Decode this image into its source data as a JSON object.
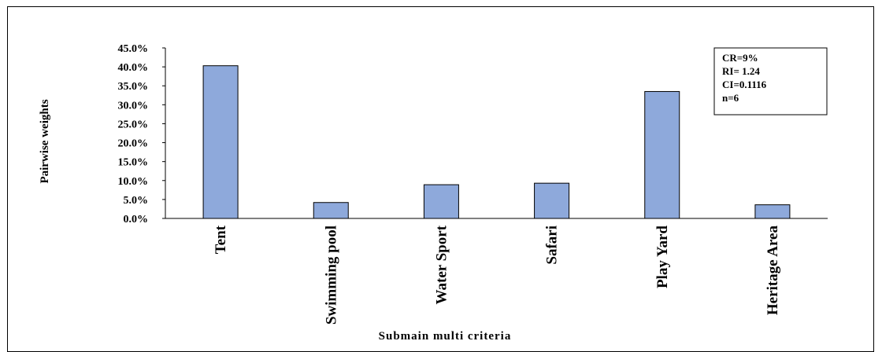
{
  "chart_data": {
    "type": "bar",
    "title": "",
    "xlabel": "Submain multi criteria",
    "ylabel": "Pairwise weights",
    "categories": [
      "Tent",
      "Swimming pool",
      "Water Sport",
      "Safari",
      "Play Yard",
      "Heritage Area"
    ],
    "values": [
      40.3,
      4.2,
      8.9,
      9.3,
      33.5,
      3.6
    ],
    "ylim": [
      0,
      45
    ],
    "yticks": [
      "0.0%",
      "5.0%",
      "10.0%",
      "15.0%",
      "20.0%",
      "25.0%",
      "30.0%",
      "35.0%",
      "40.0%",
      "45.0%"
    ],
    "grid": false,
    "legend": "none",
    "bar_color": "#8EA9DB",
    "annotation_lines": [
      "CR=9%",
      "RI= 1.24",
      "CI=0.1116",
      "n=6"
    ]
  }
}
